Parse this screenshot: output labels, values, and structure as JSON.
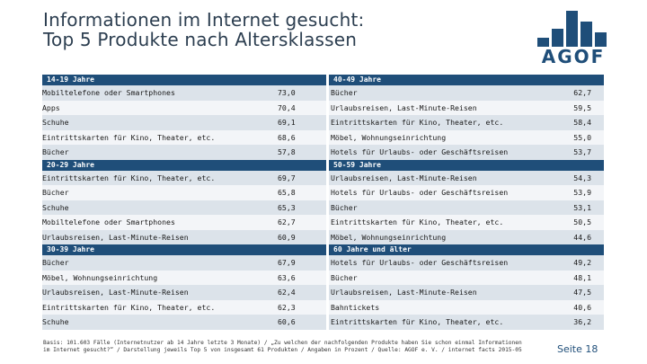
{
  "title": {
    "line1": "Informationen im Internet gesucht:",
    "line2": "Top 5 Produkte nach Altersklassen"
  },
  "logo": {
    "text": "AGOF",
    "color": "#1f4e79"
  },
  "colors": {
    "header": "#1f4e79",
    "row_dark": "#dce3ea",
    "row_light": "#f3f5f8"
  },
  "sections": [
    {
      "left_header": "14-19 Jahre",
      "right_header": "40-49 Jahre",
      "rows": [
        {
          "left_name": "Mobiltelefone oder Smartphones",
          "left_value": "73,0",
          "right_name": "Bücher",
          "right_value": "62,7"
        },
        {
          "left_name": "Apps",
          "left_value": "70,4",
          "right_name": "Urlaubsreisen, Last-Minute-Reisen",
          "right_value": "59,5"
        },
        {
          "left_name": "Schuhe",
          "left_value": "69,1",
          "right_name": "Eintrittskarten für Kino, Theater, etc.",
          "right_value": "58,4"
        },
        {
          "left_name": "Eintrittskarten für Kino, Theater, etc.",
          "left_value": "68,6",
          "right_name": "Möbel, Wohnungseinrichtung",
          "right_value": "55,0"
        },
        {
          "left_name": "Bücher",
          "left_value": "57,8",
          "right_name": "Hotels für Urlaubs- oder Geschäftsreisen",
          "right_value": "53,7"
        }
      ]
    },
    {
      "left_header": "20-29 Jahre",
      "right_header": "50-59 Jahre",
      "rows": [
        {
          "left_name": "Eintrittskarten für Kino, Theater, etc.",
          "left_value": "69,7",
          "right_name": "Urlaubsreisen, Last-Minute-Reisen",
          "right_value": "54,3"
        },
        {
          "left_name": "Bücher",
          "left_value": "65,8",
          "right_name": "Hotels für Urlaubs- oder Geschäftsreisen",
          "right_value": "53,9"
        },
        {
          "left_name": "Schuhe",
          "left_value": "65,3",
          "right_name": "Bücher",
          "right_value": "53,1"
        },
        {
          "left_name": "Mobiltelefone oder Smartphones",
          "left_value": "62,7",
          "right_name": "Eintrittskarten für Kino, Theater, etc.",
          "right_value": "50,5"
        },
        {
          "left_name": "Urlaubsreisen, Last-Minute-Reisen",
          "left_value": "60,9",
          "right_name": "Möbel, Wohnungseinrichtung",
          "right_value": "44,6"
        }
      ]
    },
    {
      "left_header": "30-39 Jahre",
      "right_header": "60 Jahre und älter",
      "rows": [
        {
          "left_name": "Bücher",
          "left_value": "67,9",
          "right_name": "Hotels für Urlaubs- oder Geschäftsreisen",
          "right_value": "49,2"
        },
        {
          "left_name": "Möbel, Wohnungseinrichtung",
          "left_value": "63,6",
          "right_name": "Bücher",
          "right_value": "48,1"
        },
        {
          "left_name": "Urlaubsreisen, Last-Minute-Reisen",
          "left_value": "62,4",
          "right_name": "Urlaubsreisen, Last-Minute-Reisen",
          "right_value": "47,5"
        },
        {
          "left_name": "Eintrittskarten für Kino, Theater, etc.",
          "left_value": "62,3",
          "right_name": "Bahntickets",
          "right_value": "40,6"
        },
        {
          "left_name": "Schuhe",
          "left_value": "60,6",
          "right_name": "Eintrittskarten für Kino, Theater, etc.",
          "right_value": "36,2"
        }
      ]
    }
  ],
  "footnote": {
    "line1": "Basis: 101.603 Fälle (Internetnutzer ab 14 Jahre letzte 3 Monate) / „Zu welchen der nachfolgenden Produkte haben Sie schon einmal Informationen",
    "line2": "im Internet gesucht?“ / Darstellung jeweils Top 5 von insgesamt 61 Produkten / Angaben in Prozent / Quelle: AGOF e. V. / internet facts 2015-05"
  },
  "page_number": "Seite 18"
}
